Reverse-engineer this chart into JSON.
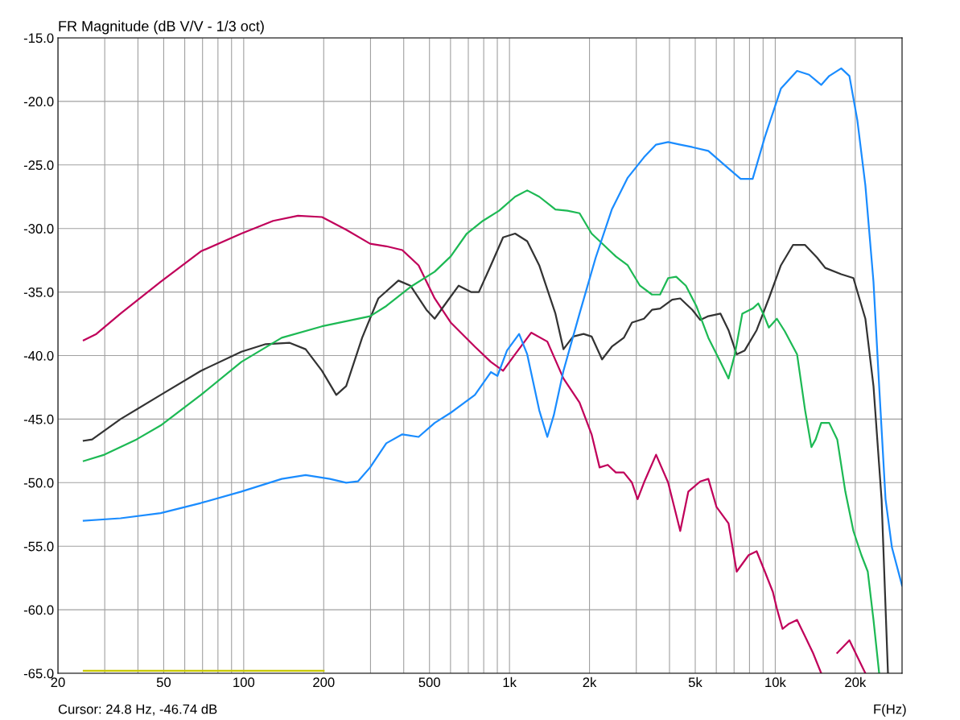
{
  "chart_data": {
    "type": "line",
    "title": "FR Magnitude (dB V/V - 1/3 oct)",
    "xlabel": "F(Hz)",
    "annotations": [
      "Cursor: 24.8 Hz, -46.74 dB"
    ],
    "log": "x",
    "grid": true,
    "marker": "none",
    "line_style": "solid",
    "xlim": [
      20,
      30000
    ],
    "ylim": [
      -65,
      -15
    ],
    "xticks": [
      20,
      {
        "value": 30,
        "label": null
      },
      {
        "value": 40,
        "label": null
      },
      50,
      {
        "value": 60,
        "label": null
      },
      {
        "value": 70,
        "label": null
      },
      {
        "value": 80,
        "label": null
      },
      {
        "value": 90,
        "label": null
      },
      100,
      200,
      {
        "value": 300,
        "label": null
      },
      {
        "value": 400,
        "label": null
      },
      500,
      {
        "value": 600,
        "label": null
      },
      {
        "value": 700,
        "label": null
      },
      {
        "value": 800,
        "label": null
      },
      {
        "value": 900,
        "label": null
      },
      {
        "value": 1000,
        "label": "1k"
      },
      {
        "value": 2000,
        "label": "2k"
      },
      {
        "value": 3000,
        "label": null
      },
      {
        "value": 4000,
        "label": null
      },
      {
        "value": 5000,
        "label": "5k"
      },
      {
        "value": 6000,
        "label": null
      },
      {
        "value": 7000,
        "label": null
      },
      {
        "value": 8000,
        "label": null
      },
      {
        "value": 9000,
        "label": null
      },
      {
        "value": 10000,
        "label": "10k"
      },
      {
        "value": 20000,
        "label": "20k"
      }
    ],
    "yticks": [
      {
        "value": -15,
        "label": "-15.0"
      },
      {
        "value": -20,
        "label": "-20.0"
      },
      {
        "value": -25,
        "label": "-25.0"
      },
      {
        "value": -30,
        "label": "-30.0"
      },
      {
        "value": -35,
        "label": "-35.0"
      },
      {
        "value": -40,
        "label": "-40.0"
      },
      {
        "value": -45,
        "label": "-45.0"
      },
      {
        "value": -50,
        "label": "-50.0"
      },
      {
        "value": -55,
        "label": "-55.0"
      },
      {
        "value": -60,
        "label": "-60.0"
      },
      {
        "value": -65,
        "label": "-65.0"
      }
    ],
    "series": [
      {
        "color": "#c8c800",
        "x": [
          25,
          200
        ],
        "values": [
          -64.8,
          -64.8
        ]
      },
      {
        "color": "#c0005a",
        "x": [
          25,
          27.9,
          34.4,
          48.7,
          69,
          98,
          129,
          160,
          197,
          243,
          299,
          344,
          395,
          455,
          523,
          601,
          741,
          851,
          946,
          1050,
          1207,
          1388,
          1596,
          1835,
          2037,
          2183,
          2343,
          2512,
          2692,
          2890,
          3034,
          3206,
          3561,
          3954,
          4390,
          4710,
          5224,
          5601,
          6008,
          6670,
          7159,
          7943,
          8511,
          9139,
          9795,
          10140,
          10650,
          11270,
          12080,
          12950,
          13870,
          14890,
          16000,
          17110,
          19010,
          20370,
          21830
        ],
        "values": [
          -38.8,
          -38.3,
          -36.7,
          -34.2,
          -31.8,
          -30.4,
          -29.4,
          -29.0,
          -29.1,
          -30.1,
          -31.2,
          -31.4,
          -31.7,
          -32.9,
          -35.5,
          -37.4,
          -39.3,
          -40.5,
          -41.2,
          -39.9,
          -38.2,
          -38.9,
          -41.8,
          -43.7,
          -46.2,
          -48.8,
          -48.6,
          -49.2,
          -49.2,
          -50.0,
          -51.3,
          -50.0,
          -47.8,
          -50.0,
          -53.8,
          -50.7,
          -49.9,
          -49.7,
          -51.9,
          -53.2,
          -57.0,
          -55.7,
          -55.4,
          -57.0,
          -58.6,
          -59.9,
          -61.5,
          -61.1,
          -60.8,
          -62.1,
          -63.4,
          -65.0,
          null,
          -63.4,
          -62.4,
          -63.7,
          -65.0
        ]
      },
      {
        "color": "#333333",
        "x": [
          25,
          26.9,
          34.4,
          48.7,
          69,
          98,
          121,
          149,
          171,
          197,
          223,
          243,
          279,
          321,
          382,
          424,
          487,
          523,
          580,
          644,
          716,
          767,
          851,
          946,
          1050,
          1166,
          1294,
          1489,
          1596,
          1735,
          1900,
          2037,
          2230,
          2427,
          2692,
          2890,
          3206,
          3437,
          3687,
          4093,
          4390,
          4876,
          5224,
          5601,
          6223,
          6670,
          7159,
          7674,
          8511,
          9462,
          10500,
          11660,
          12950,
          14380,
          15420,
          17710,
          19680,
          21830,
          23420,
          25120,
          26550
        ],
        "values": [
          -46.7,
          -46.6,
          -45.0,
          -43.1,
          -41.2,
          -39.7,
          -39.1,
          -39.0,
          -39.5,
          -41.2,
          -43.1,
          -42.4,
          -38.6,
          -35.5,
          -34.1,
          -34.5,
          -36.4,
          -37.1,
          -35.8,
          -34.5,
          -35.0,
          -35.0,
          -32.9,
          -30.7,
          -30.4,
          -31.0,
          -32.9,
          -36.7,
          -39.5,
          -38.5,
          -38.3,
          -38.5,
          -40.3,
          -39.3,
          -38.6,
          -37.4,
          -37.1,
          -36.4,
          -36.3,
          -35.6,
          -35.5,
          -36.4,
          -37.2,
          -36.9,
          -36.7,
          -38.0,
          -39.9,
          -39.6,
          -38.0,
          -35.5,
          -32.9,
          -31.3,
          -31.3,
          -32.3,
          -33.1,
          -33.6,
          -33.9,
          -37.1,
          -42.4,
          -51.3,
          -65.0
        ]
      },
      {
        "color": "#1db954",
        "x": [
          25,
          29.9,
          39.5,
          48.7,
          69,
          98,
          139,
          197,
          299,
          344,
          424,
          523,
          601,
          691,
          794,
          914,
          1050,
          1166,
          1294,
          1489,
          1652,
          1835,
          2037,
          2264,
          2512,
          2786,
          3097,
          3437,
          3687,
          3954,
          4239,
          4610,
          5047,
          5601,
          6223,
          6670,
          7047,
          7516,
          8222,
          8630,
          9010,
          9462,
          10140,
          10870,
          12080,
          12950,
          13680,
          14190,
          14890,
          15960,
          17110,
          18350,
          19680,
          21090,
          22290,
          23420,
          24600
        ],
        "values": [
          -48.3,
          -47.8,
          -46.6,
          -45.5,
          -43.1,
          -40.5,
          -38.6,
          -37.7,
          -36.9,
          -36.1,
          -34.6,
          -33.4,
          -32.2,
          -30.4,
          -29.4,
          -28.6,
          -27.5,
          -27.0,
          -27.5,
          -28.5,
          -28.6,
          -28.8,
          -30.4,
          -31.3,
          -32.2,
          -32.9,
          -34.5,
          -35.2,
          -35.2,
          -33.9,
          -33.8,
          -34.5,
          -36.1,
          -38.6,
          -40.5,
          -41.8,
          -39.9,
          -36.7,
          -36.3,
          -35.9,
          -36.7,
          -37.8,
          -37.1,
          -38.1,
          -39.9,
          -44.3,
          -47.2,
          -46.6,
          -45.3,
          -45.3,
          -46.6,
          -50.7,
          -53.8,
          -55.7,
          -57.0,
          -60.8,
          -65.0
        ]
      },
      {
        "color": "#1a8cff",
        "x": [
          25,
          34.4,
          48.7,
          69,
          98,
          139,
          171,
          211,
          243,
          269,
          299,
          344,
          395,
          455,
          523,
          601,
          741,
          851,
          901,
          979,
          1087,
          1166,
          1294,
          1388,
          1468,
          1596,
          1835,
          2110,
          2427,
          2786,
          3206,
          3561,
          3954,
          4390,
          4876,
          5601,
          6442,
          7413,
          8222,
          9139,
          10500,
          12080,
          13400,
          14890,
          15960,
          17710,
          19010,
          20370,
          21830,
          23420,
          24600,
          26000,
          27480,
          30000
        ],
        "values": [
          -53.0,
          -52.8,
          -52.4,
          -51.6,
          -50.7,
          -49.7,
          -49.4,
          -49.7,
          -50.0,
          -49.9,
          -48.8,
          -46.9,
          -46.2,
          -46.4,
          -45.3,
          -44.5,
          -43.1,
          -41.3,
          -41.6,
          -39.6,
          -38.3,
          -39.9,
          -44.3,
          -46.4,
          -44.7,
          -41.2,
          -36.7,
          -32.3,
          -28.5,
          -26.0,
          -24.4,
          -23.4,
          -23.2,
          -23.4,
          -23.6,
          -23.9,
          -25.0,
          -26.1,
          -26.1,
          -22.8,
          -19.0,
          -17.6,
          -17.9,
          -18.7,
          -18.0,
          -17.4,
          -18.0,
          -21.5,
          -26.6,
          -34.2,
          -42.4,
          -51.3,
          -55.1,
          -58.1
        ]
      }
    ]
  }
}
